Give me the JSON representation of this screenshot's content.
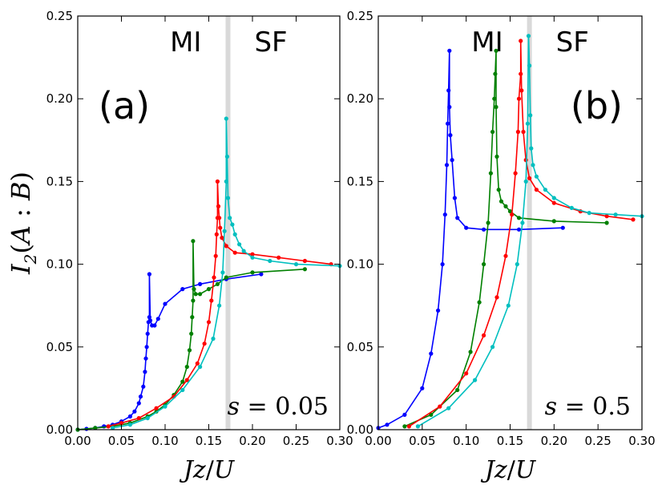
{
  "chart_data": [
    {
      "type": "line",
      "panel_label": "(a)",
      "annotation": "s = 0.05",
      "region_labels": [
        "MI",
        "SF"
      ],
      "critical_band_x": 0.172,
      "xlabel": "Jz/U",
      "ylabel": "I2(A:B)",
      "xlim": [
        0.0,
        0.3
      ],
      "ylim": [
        0.0,
        0.25
      ],
      "x_ticks": [
        "0.00",
        "0.05",
        "0.10",
        "0.15",
        "0.20",
        "0.25",
        "0.30"
      ],
      "y_ticks": [
        "0.00",
        "0.05",
        "0.10",
        "0.15",
        "0.20",
        "0.25"
      ],
      "series": [
        {
          "color": "#0000ff",
          "x": [
            0.0,
            0.01,
            0.02,
            0.03,
            0.04,
            0.05,
            0.06,
            0.065,
            0.07,
            0.072,
            0.075,
            0.077,
            0.078,
            0.079,
            0.08,
            0.081,
            0.082,
            0.082,
            0.083,
            0.085,
            0.088,
            0.092,
            0.1,
            0.12,
            0.14,
            0.17,
            0.21
          ],
          "y": [
            0.0,
            0.0005,
            0.001,
            0.002,
            0.003,
            0.005,
            0.008,
            0.011,
            0.016,
            0.02,
            0.026,
            0.035,
            0.043,
            0.05,
            0.058,
            0.065,
            0.068,
            0.094,
            0.066,
            0.063,
            0.063,
            0.067,
            0.076,
            0.085,
            0.088,
            0.091,
            0.094
          ]
        },
        {
          "color": "#008000",
          "x": [
            0.0,
            0.02,
            0.04,
            0.06,
            0.08,
            0.09,
            0.1,
            0.11,
            0.12,
            0.125,
            0.128,
            0.13,
            0.131,
            0.132,
            0.132,
            0.133,
            0.135,
            0.14,
            0.15,
            0.16,
            0.17,
            0.2,
            0.26
          ],
          "y": [
            0.0,
            0.001,
            0.002,
            0.004,
            0.008,
            0.011,
            0.015,
            0.021,
            0.029,
            0.038,
            0.048,
            0.058,
            0.068,
            0.078,
            0.114,
            0.085,
            0.082,
            0.082,
            0.085,
            0.088,
            0.092,
            0.095,
            0.097
          ]
        },
        {
          "color": "#ff0000",
          "x": [
            0.035,
            0.05,
            0.07,
            0.09,
            0.11,
            0.125,
            0.137,
            0.145,
            0.15,
            0.153,
            0.156,
            0.158,
            0.159,
            0.16,
            0.16,
            0.161,
            0.162,
            0.163,
            0.165,
            0.17,
            0.18,
            0.2,
            0.23,
            0.26,
            0.29
          ],
          "y": [
            0.002,
            0.004,
            0.007,
            0.013,
            0.02,
            0.03,
            0.04,
            0.052,
            0.065,
            0.078,
            0.092,
            0.105,
            0.118,
            0.128,
            0.15,
            0.135,
            0.128,
            0.122,
            0.116,
            0.111,
            0.107,
            0.106,
            0.104,
            0.102,
            0.1
          ]
        },
        {
          "color": "#00bfbf",
          "x": [
            0.04,
            0.06,
            0.08,
            0.1,
            0.12,
            0.14,
            0.155,
            0.162,
            0.166,
            0.168,
            0.17,
            0.17,
            0.171,
            0.172,
            0.174,
            0.177,
            0.18,
            0.185,
            0.19,
            0.2,
            0.22,
            0.25,
            0.3
          ],
          "y": [
            0.001,
            0.003,
            0.007,
            0.014,
            0.024,
            0.038,
            0.055,
            0.075,
            0.095,
            0.12,
            0.15,
            0.188,
            0.165,
            0.14,
            0.128,
            0.124,
            0.118,
            0.112,
            0.108,
            0.104,
            0.102,
            0.1,
            0.099
          ]
        }
      ]
    },
    {
      "type": "line",
      "panel_label": "(b)",
      "annotation": "s = 0.5",
      "region_labels": [
        "MI",
        "SF"
      ],
      "critical_band_x": 0.172,
      "xlabel": "Jz/U",
      "ylabel": "",
      "xlim": [
        0.0,
        0.3
      ],
      "ylim": [
        0.0,
        0.25
      ],
      "x_ticks": [
        "0.00",
        "0.05",
        "0.10",
        "0.15",
        "0.20",
        "0.25",
        "0.30"
      ],
      "y_ticks": [
        "0.00",
        "0.05",
        "0.10",
        "0.15",
        "0.20",
        "0.25"
      ],
      "series": [
        {
          "color": "#0000ff",
          "x": [
            0.0,
            0.01,
            0.03,
            0.05,
            0.06,
            0.068,
            0.073,
            0.076,
            0.078,
            0.079,
            0.08,
            0.081,
            0.081,
            0.082,
            0.084,
            0.087,
            0.09,
            0.1,
            0.12,
            0.16,
            0.21
          ],
          "y": [
            0.001,
            0.003,
            0.009,
            0.025,
            0.046,
            0.072,
            0.1,
            0.13,
            0.16,
            0.185,
            0.205,
            0.229,
            0.195,
            0.178,
            0.163,
            0.14,
            0.128,
            0.122,
            0.121,
            0.121,
            0.122
          ]
        },
        {
          "color": "#008000",
          "x": [
            0.03,
            0.06,
            0.09,
            0.105,
            0.115,
            0.12,
            0.125,
            0.128,
            0.13,
            0.132,
            0.133,
            0.134,
            0.134,
            0.135,
            0.137,
            0.14,
            0.145,
            0.15,
            0.16,
            0.2,
            0.26
          ],
          "y": [
            0.002,
            0.009,
            0.024,
            0.047,
            0.077,
            0.1,
            0.125,
            0.155,
            0.18,
            0.2,
            0.215,
            0.229,
            0.195,
            0.165,
            0.145,
            0.138,
            0.135,
            0.132,
            0.128,
            0.126,
            0.125
          ]
        },
        {
          "color": "#ff0000",
          "x": [
            0.035,
            0.07,
            0.1,
            0.12,
            0.135,
            0.145,
            0.152,
            0.156,
            0.159,
            0.16,
            0.162,
            0.162,
            0.163,
            0.165,
            0.168,
            0.172,
            0.18,
            0.2,
            0.23,
            0.26,
            0.29
          ],
          "y": [
            0.002,
            0.014,
            0.034,
            0.057,
            0.08,
            0.105,
            0.13,
            0.155,
            0.18,
            0.2,
            0.215,
            0.235,
            0.205,
            0.18,
            0.163,
            0.152,
            0.145,
            0.137,
            0.132,
            0.129,
            0.127
          ]
        },
        {
          "color": "#00bfbf",
          "x": [
            0.045,
            0.08,
            0.11,
            0.13,
            0.148,
            0.158,
            0.164,
            0.168,
            0.17,
            0.171,
            0.172,
            0.173,
            0.174,
            0.176,
            0.18,
            0.19,
            0.2,
            0.22,
            0.24,
            0.27,
            0.3
          ],
          "y": [
            0.002,
            0.013,
            0.03,
            0.05,
            0.075,
            0.1,
            0.125,
            0.15,
            0.185,
            0.238,
            0.22,
            0.19,
            0.17,
            0.16,
            0.153,
            0.145,
            0.14,
            0.134,
            0.131,
            0.13,
            0.129
          ]
        }
      ]
    }
  ]
}
